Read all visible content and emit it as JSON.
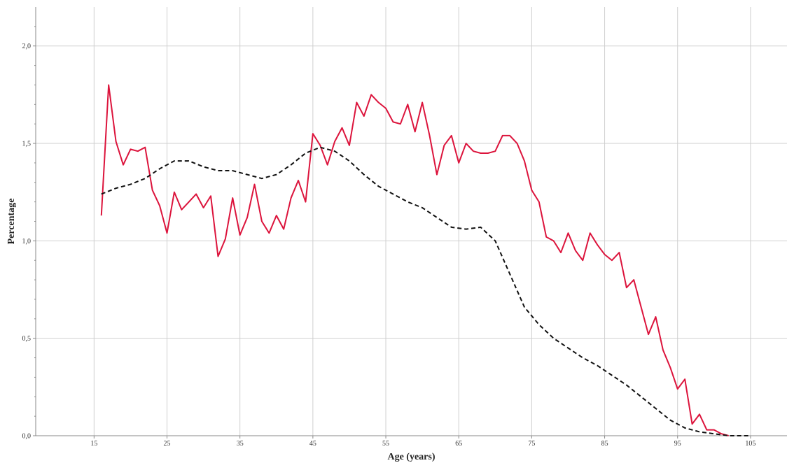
{
  "chart_data": {
    "type": "line",
    "title": "",
    "xlabel": "Age (years)",
    "ylabel": "Percentage",
    "xlim": [
      7,
      110
    ],
    "ylim": [
      0,
      2.2
    ],
    "x_ticks": [
      15,
      25,
      35,
      45,
      55,
      65,
      75,
      85,
      95,
      105
    ],
    "y_ticks": [
      0.0,
      0.5,
      1.0,
      1.5,
      2.0
    ],
    "y_tick_labels": [
      "0,0",
      "0,5",
      "1,0",
      "1,5",
      "2,0"
    ],
    "grid": true,
    "legend": "none",
    "series": [
      {
        "color": "#dc143c",
        "style": "solid",
        "x": [
          16,
          17,
          18,
          19,
          20,
          21,
          22,
          23,
          24,
          25,
          26,
          27,
          28,
          29,
          30,
          31,
          32,
          33,
          34,
          35,
          36,
          37,
          38,
          39,
          40,
          41,
          42,
          43,
          44,
          45,
          46,
          47,
          48,
          49,
          50,
          51,
          52,
          53,
          54,
          55,
          56,
          57,
          58,
          59,
          60,
          61,
          62,
          63,
          64,
          65,
          66,
          67,
          68,
          69,
          70,
          71,
          72,
          73,
          74,
          75,
          76,
          77,
          78,
          79,
          80,
          81,
          82,
          83,
          84,
          85,
          86,
          87,
          88,
          89,
          90,
          91,
          92,
          93,
          94,
          95,
          96,
          97,
          98,
          99,
          100,
          101,
          102
        ],
        "values": [
          1.13,
          1.8,
          1.51,
          1.39,
          1.47,
          1.46,
          1.48,
          1.26,
          1.18,
          1.04,
          1.25,
          1.16,
          1.2,
          1.24,
          1.17,
          1.23,
          0.92,
          1.01,
          1.22,
          1.03,
          1.12,
          1.29,
          1.1,
          1.04,
          1.13,
          1.06,
          1.22,
          1.31,
          1.2,
          1.55,
          1.49,
          1.39,
          1.51,
          1.58,
          1.49,
          1.71,
          1.64,
          1.75,
          1.71,
          1.68,
          1.61,
          1.6,
          1.7,
          1.56,
          1.71,
          1.54,
          1.34,
          1.49,
          1.54,
          1.4,
          1.5,
          1.46,
          1.45,
          1.45,
          1.46,
          1.54,
          1.54,
          1.5,
          1.41,
          1.26,
          1.2,
          1.02,
          1.0,
          0.94,
          1.04,
          0.95,
          0.9,
          1.04,
          0.98,
          0.93,
          0.9,
          0.94,
          0.76,
          0.8,
          0.66,
          0.52,
          0.61,
          0.44,
          0.35,
          0.24,
          0.29,
          0.06,
          0.11,
          0.03,
          0.03,
          0.01,
          0.0
        ]
      },
      {
        "color": "#111111",
        "style": "dashed",
        "x": [
          16,
          18,
          20,
          22,
          24,
          26,
          28,
          30,
          32,
          34,
          36,
          38,
          40,
          42,
          44,
          46,
          48,
          50,
          52,
          54,
          56,
          58,
          60,
          62,
          64,
          66,
          68,
          70,
          72,
          74,
          76,
          78,
          80,
          82,
          84,
          86,
          88,
          90,
          92,
          94,
          96,
          98,
          100,
          102,
          104,
          105
        ],
        "values": [
          1.24,
          1.27,
          1.29,
          1.32,
          1.37,
          1.41,
          1.41,
          1.38,
          1.36,
          1.36,
          1.34,
          1.32,
          1.34,
          1.39,
          1.45,
          1.48,
          1.46,
          1.41,
          1.34,
          1.28,
          1.24,
          1.2,
          1.17,
          1.12,
          1.07,
          1.06,
          1.07,
          1.0,
          0.83,
          0.66,
          0.57,
          0.5,
          0.45,
          0.4,
          0.36,
          0.31,
          0.26,
          0.2,
          0.14,
          0.08,
          0.04,
          0.02,
          0.01,
          0.0,
          0.0,
          0.0
        ]
      }
    ]
  }
}
